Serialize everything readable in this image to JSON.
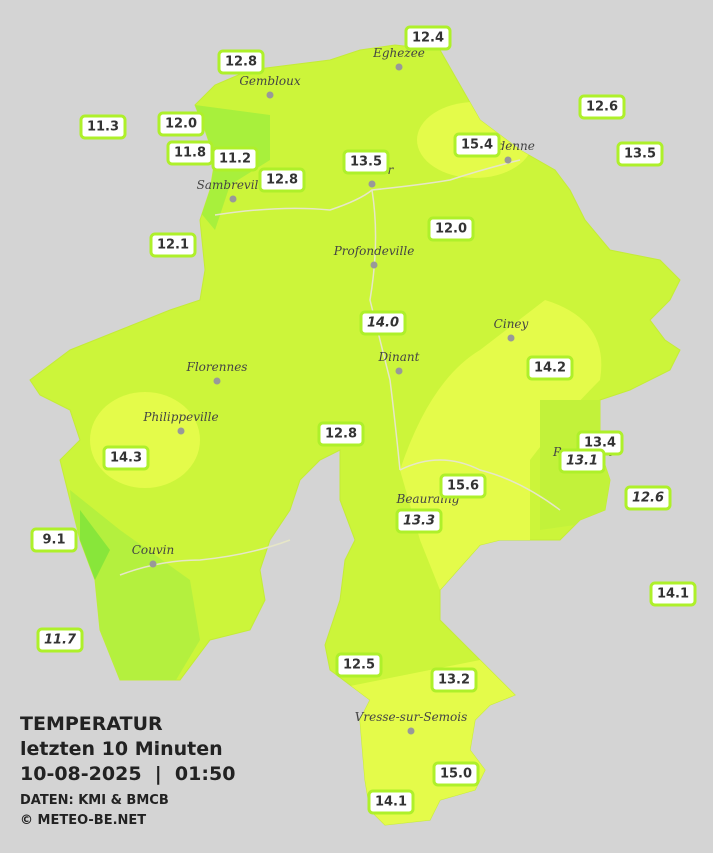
{
  "title": {
    "line1": "TEMPERATUR",
    "line2": "letzten 10 Minuten",
    "line3": "10-08-2025  |  01:50",
    "source": "DATEN: KMI & BMCB",
    "copyright": "© METEO-BE.NET"
  },
  "cities": [
    "Eghezee",
    "Gembloux",
    "Andenne",
    "Namur",
    "Sambreville",
    "Profondeville",
    "Ciney",
    "Dinant",
    "Florennes",
    "Philippeville",
    "Rochefort",
    "Beauraing",
    "Couvin",
    "Vresse-sur-Semois"
  ],
  "stations": [
    "12.4",
    "12.8",
    "12.6",
    "11.3",
    "12.0",
    "15.4",
    "11.8",
    "11.2",
    "13.5",
    "13.5",
    "12.8",
    "12.1",
    "12.0",
    "14.0",
    "14.2",
    "12.8",
    "13.4",
    "13.1",
    "14.3",
    "15.6",
    "12.6",
    "13.3",
    "9.1",
    "14.1",
    "11.7",
    "12.5",
    "13.2",
    "15.0",
    "14.1"
  ]
}
